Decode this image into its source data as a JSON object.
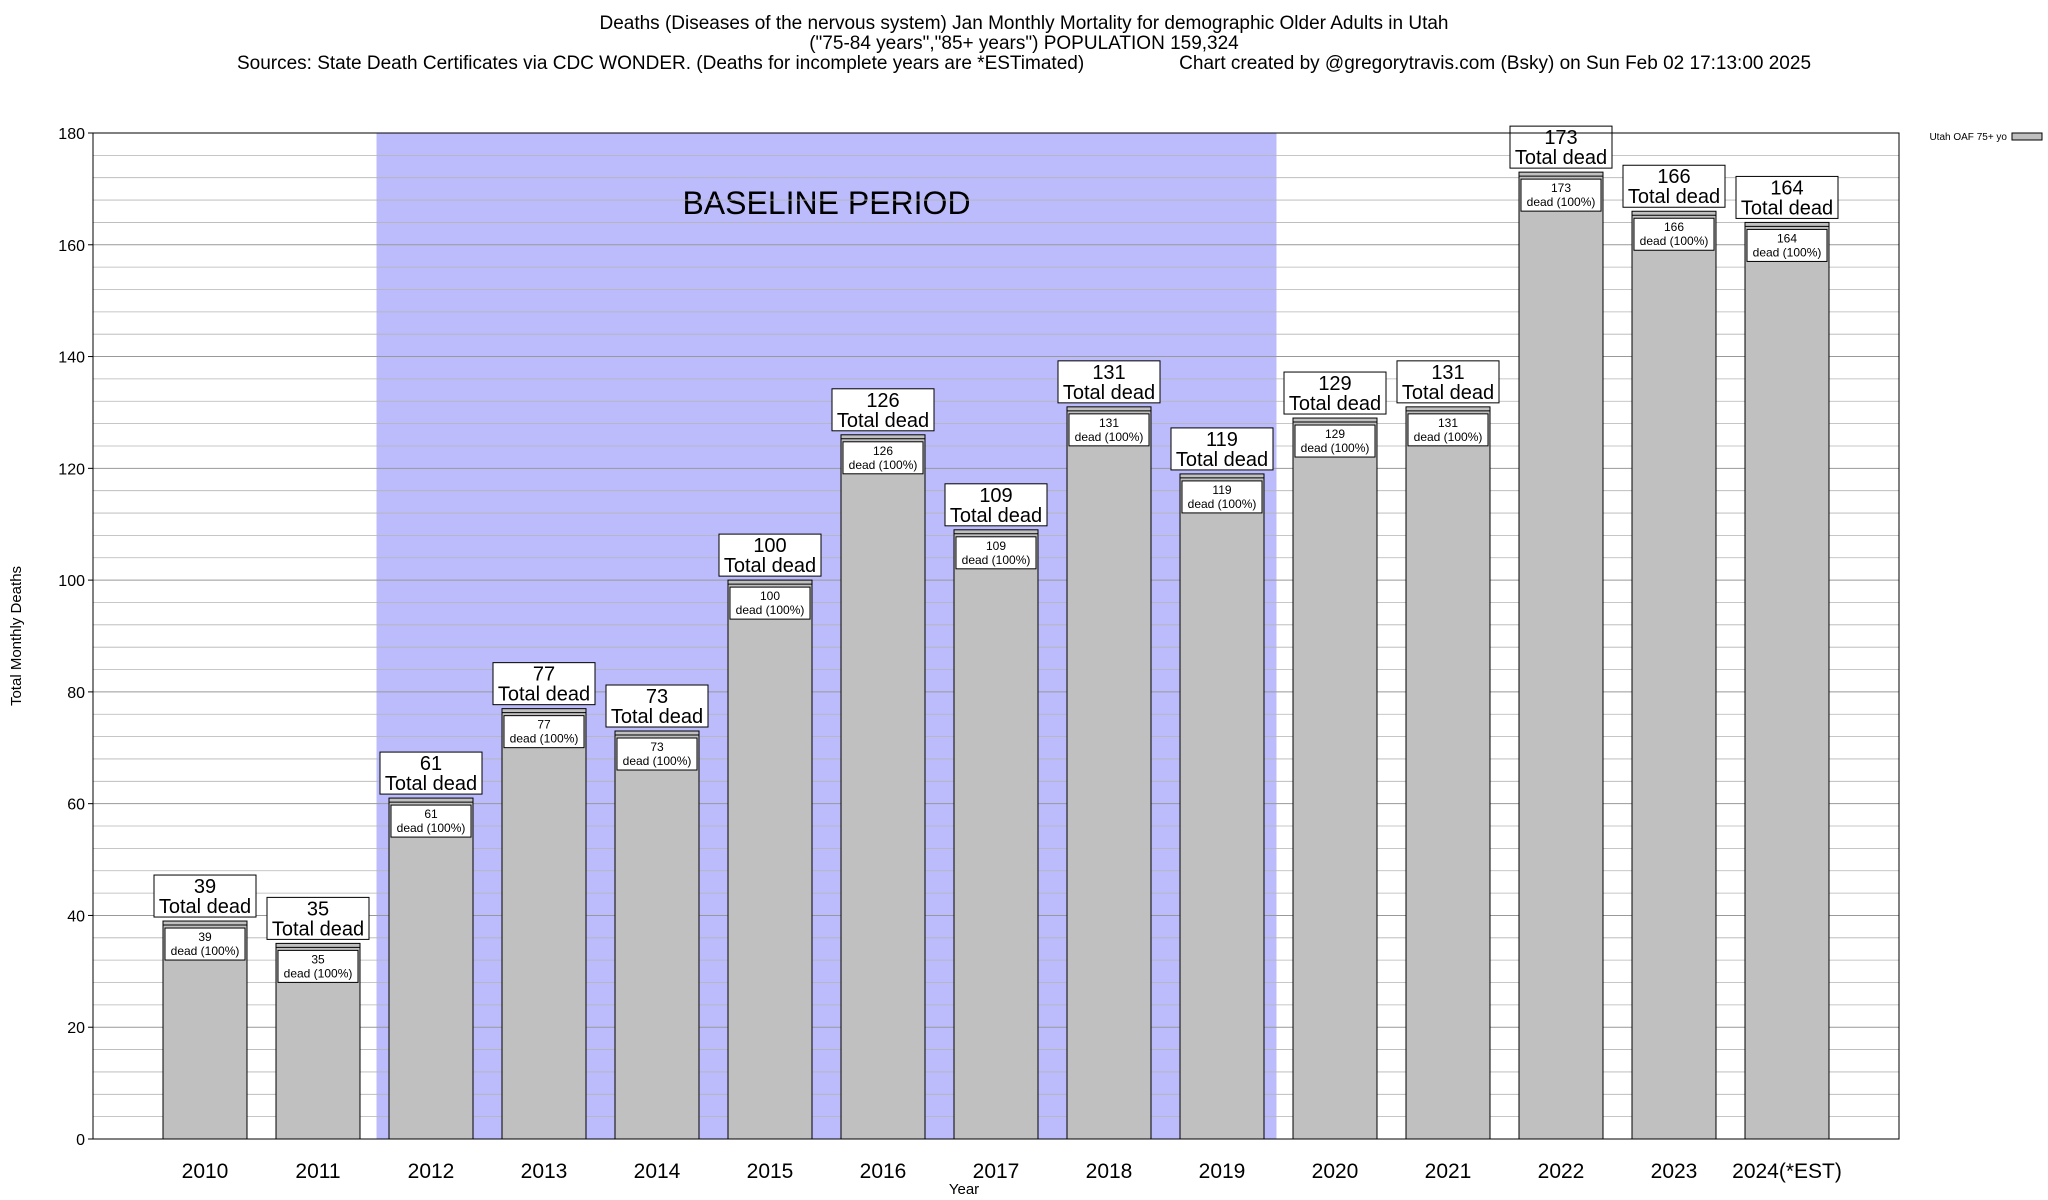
{
  "chart_data": {
    "type": "bar",
    "title": "Deaths (Diseases of the nervous system) Jan Monthly Mortality for demographic Older Adults in Utah",
    "subtitle": "(\"75-84 years\",\"85+ years\") POPULATION 159,324",
    "sources": "Sources: State Death Certificates via CDC WONDER. (Deaths for incomplete years are *ESTimated)",
    "credit": "Chart created by @gregorytravis.com (Bsky) on Sun Feb 02 17:13:00 2025",
    "xlabel": "Year",
    "ylabel": "Total Monthly Deaths",
    "ylim": [
      0,
      180
    ],
    "yticks": [
      "0",
      "20",
      "40",
      "60",
      "80",
      "100",
      "120",
      "140",
      "160",
      "180"
    ],
    "categories": [
      "2010",
      "2011",
      "2012",
      "2013",
      "2014",
      "2015",
      "2016",
      "2017",
      "2018",
      "2019",
      "2020",
      "2021",
      "2022",
      "2023",
      "2024(*EST)"
    ],
    "series": [
      {
        "name": "Utah OAF 75+ yo",
        "color": "#c0c0c0",
        "values": [
          39,
          35,
          61,
          77,
          73,
          100,
          126,
          109,
          131,
          119,
          129,
          131,
          173,
          166,
          164
        ]
      }
    ],
    "total_labels": [
      "39",
      "35",
      "61",
      "77",
      "73",
      "100",
      "126",
      "109",
      "131",
      "119",
      "129",
      "131",
      "173",
      "166",
      "164"
    ],
    "total_label_suffix": "Total dead",
    "inner_labels": [
      "39",
      "35",
      "61",
      "77",
      "73",
      "100",
      "126",
      "109",
      "131",
      "119",
      "129",
      "131",
      "173",
      "166",
      "164"
    ],
    "inner_label_suffix": "dead (100%)",
    "baseline": {
      "label": "BASELINE PERIOD",
      "start": "2012",
      "end": "2019",
      "color": "#bcbcfc"
    },
    "grid": true,
    "legend_position": "top-right"
  }
}
